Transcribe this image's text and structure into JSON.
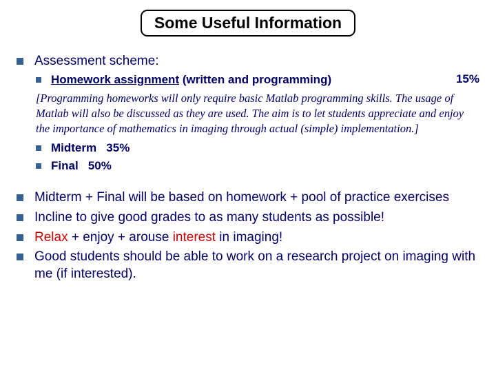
{
  "title": "Some Useful Information",
  "colors": {
    "text": "#000066",
    "bullet": "#376092",
    "accent_red": "#cc0000",
    "title_border": "#000000",
    "background": "#ffffff"
  },
  "assessment": {
    "heading": "Assessment scheme:",
    "items": [
      {
        "label_underlined": "Homework assignment",
        "label_rest": " (written and programming)",
        "percent": "15%"
      }
    ],
    "note": "[Programming homeworks will only require basic Matlab programming skills. The usage of Matlab will also be discussed as they are used. The aim is to let students appreciate and enjoy the importance of mathematics in imaging through actual (simple) implementation.]",
    "post_items": [
      {
        "label": "Midterm",
        "percent": "35%"
      },
      {
        "label": "Final",
        "percent": "50%"
      }
    ]
  },
  "bullets": {
    "b1": "Midterm + Final will be based on homework + pool of practice exercises",
    "b2": "Incline to give good grades to as many students as possible!",
    "b3_pre": "",
    "b3_red1": "Relax",
    "b3_mid1": " + enjoy + arouse ",
    "b3_red2": "interest",
    "b3_post": " in imaging!",
    "b4": "Good students should be able to work on a research project on imaging with me (if interested)."
  }
}
